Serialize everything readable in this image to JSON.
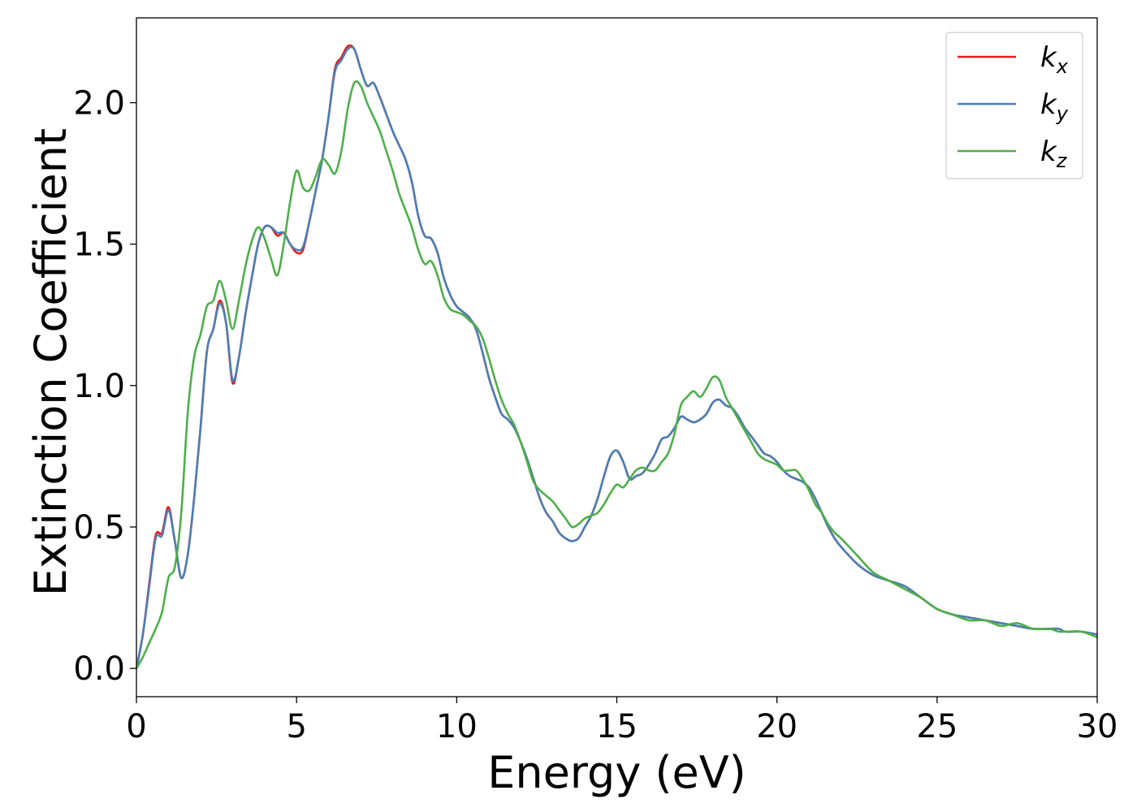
{
  "chart_data": {
    "type": "line",
    "xlabel": "Energy (eV)",
    "ylabel": "Extinction Coefficient",
    "xlim": [
      0,
      30
    ],
    "ylim": [
      -0.1,
      2.3
    ],
    "xticks": [
      0,
      5,
      10,
      15,
      20,
      25,
      30
    ],
    "xtick_labels": [
      "0",
      "5",
      "10",
      "15",
      "20",
      "25",
      "30"
    ],
    "yticks": [
      0.0,
      0.5,
      1.0,
      1.5,
      2.0
    ],
    "ytick_labels": [
      "0.0",
      "0.5",
      "1.0",
      "1.5",
      "2.0"
    ],
    "grid": false,
    "legend_position": "top-right",
    "series": [
      {
        "name": "k_x",
        "label_main": "k",
        "label_sub": "x",
        "color": "#e41a1c",
        "x": [
          0,
          0.2,
          0.4,
          0.6,
          0.8,
          1.0,
          1.2,
          1.4,
          1.6,
          1.8,
          2.0,
          2.2,
          2.4,
          2.6,
          2.8,
          3.0,
          3.2,
          3.4,
          3.6,
          3.8,
          4.0,
          4.2,
          4.4,
          4.6,
          4.8,
          5.0,
          5.2,
          5.4,
          5.6,
          5.8,
          6.0,
          6.2,
          6.4,
          6.6,
          6.8,
          7.0,
          7.2,
          7.4,
          7.6,
          7.8,
          8.0,
          8.2,
          8.4,
          8.6,
          8.8,
          9.0,
          9.2,
          9.4,
          9.6,
          9.8,
          10.0,
          10.2,
          10.4,
          10.6,
          10.8,
          11.0,
          11.2,
          11.4,
          11.6,
          11.8,
          12.0,
          12.2,
          12.4,
          12.6,
          12.8,
          13.0,
          13.2,
          13.4,
          13.6,
          13.8,
          14.0,
          14.2,
          14.4,
          14.6,
          14.8,
          15.0,
          15.2,
          15.4,
          15.6,
          15.8,
          16.0,
          16.2,
          16.4,
          16.6,
          16.8,
          17.0,
          17.2,
          17.4,
          17.6,
          17.8,
          18.0,
          18.2,
          18.4,
          18.6,
          18.8,
          19.0,
          19.2,
          19.4,
          19.6,
          19.8,
          20.0,
          20.2,
          20.4,
          20.6,
          20.8,
          21.0,
          21.2,
          21.4,
          21.6,
          21.8,
          22.0,
          22.5,
          23.0,
          23.5,
          24.0,
          24.5,
          25.0,
          25.5,
          26.0,
          26.5,
          27.0,
          27.5,
          28.0,
          28.5,
          28.8,
          29.0,
          29.5,
          30.0
        ],
        "y": [
          0.0,
          0.12,
          0.3,
          0.47,
          0.48,
          0.57,
          0.45,
          0.32,
          0.4,
          0.6,
          0.85,
          1.12,
          1.2,
          1.3,
          1.22,
          1.01,
          1.1,
          1.25,
          1.38,
          1.5,
          1.56,
          1.56,
          1.53,
          1.54,
          1.5,
          1.47,
          1.48,
          1.58,
          1.69,
          1.8,
          1.95,
          2.12,
          2.16,
          2.2,
          2.19,
          2.12,
          2.06,
          2.07,
          2.02,
          1.96,
          1.9,
          1.85,
          1.8,
          1.72,
          1.6,
          1.53,
          1.52,
          1.47,
          1.38,
          1.32,
          1.28,
          1.26,
          1.24,
          1.2,
          1.12,
          1.03,
          0.96,
          0.9,
          0.88,
          0.85,
          0.8,
          0.74,
          0.67,
          0.6,
          0.55,
          0.52,
          0.48,
          0.46,
          0.45,
          0.46,
          0.5,
          0.54,
          0.6,
          0.68,
          0.75,
          0.77,
          0.73,
          0.67,
          0.68,
          0.69,
          0.72,
          0.76,
          0.81,
          0.82,
          0.85,
          0.89,
          0.88,
          0.87,
          0.88,
          0.9,
          0.94,
          0.95,
          0.93,
          0.92,
          0.89,
          0.85,
          0.82,
          0.79,
          0.76,
          0.75,
          0.73,
          0.7,
          0.68,
          0.67,
          0.66,
          0.64,
          0.6,
          0.55,
          0.5,
          0.46,
          0.43,
          0.37,
          0.33,
          0.31,
          0.29,
          0.25,
          0.21,
          0.19,
          0.18,
          0.17,
          0.16,
          0.15,
          0.14,
          0.14,
          0.14,
          0.13,
          0.13,
          0.12
        ]
      },
      {
        "name": "k_y",
        "label_main": "k",
        "label_sub": "y",
        "color": "#4a7fb5",
        "x": [
          0,
          0.2,
          0.4,
          0.6,
          0.8,
          1.0,
          1.2,
          1.4,
          1.6,
          1.8,
          2.0,
          2.2,
          2.4,
          2.6,
          2.8,
          3.0,
          3.2,
          3.4,
          3.6,
          3.8,
          4.0,
          4.2,
          4.4,
          4.6,
          4.8,
          5.0,
          5.2,
          5.4,
          5.6,
          5.8,
          6.0,
          6.2,
          6.4,
          6.6,
          6.8,
          7.0,
          7.2,
          7.4,
          7.6,
          7.8,
          8.0,
          8.2,
          8.4,
          8.6,
          8.8,
          9.0,
          9.2,
          9.4,
          9.6,
          9.8,
          10.0,
          10.2,
          10.4,
          10.6,
          10.8,
          11.0,
          11.2,
          11.4,
          11.6,
          11.8,
          12.0,
          12.2,
          12.4,
          12.6,
          12.8,
          13.0,
          13.2,
          13.4,
          13.6,
          13.8,
          14.0,
          14.2,
          14.4,
          14.6,
          14.8,
          15.0,
          15.2,
          15.4,
          15.6,
          15.8,
          16.0,
          16.2,
          16.4,
          16.6,
          16.8,
          17.0,
          17.2,
          17.4,
          17.6,
          17.8,
          18.0,
          18.2,
          18.4,
          18.6,
          18.8,
          19.0,
          19.2,
          19.4,
          19.6,
          19.8,
          20.0,
          20.2,
          20.4,
          20.6,
          20.8,
          21.0,
          21.2,
          21.4,
          21.6,
          21.8,
          22.0,
          22.5,
          23.0,
          23.5,
          24.0,
          24.5,
          25.0,
          25.5,
          26.0,
          26.5,
          27.0,
          27.5,
          28.0,
          28.5,
          28.8,
          29.0,
          29.5,
          30.0
        ],
        "y": [
          0.0,
          0.12,
          0.29,
          0.46,
          0.47,
          0.56,
          0.45,
          0.32,
          0.4,
          0.6,
          0.85,
          1.12,
          1.2,
          1.29,
          1.22,
          1.02,
          1.1,
          1.25,
          1.38,
          1.5,
          1.56,
          1.56,
          1.54,
          1.54,
          1.5,
          1.48,
          1.49,
          1.58,
          1.69,
          1.8,
          1.95,
          2.11,
          2.15,
          2.19,
          2.19,
          2.12,
          2.06,
          2.07,
          2.02,
          1.96,
          1.9,
          1.85,
          1.8,
          1.72,
          1.6,
          1.53,
          1.52,
          1.47,
          1.38,
          1.32,
          1.28,
          1.26,
          1.24,
          1.2,
          1.12,
          1.03,
          0.96,
          0.9,
          0.88,
          0.85,
          0.8,
          0.74,
          0.67,
          0.6,
          0.55,
          0.52,
          0.48,
          0.46,
          0.45,
          0.46,
          0.5,
          0.54,
          0.6,
          0.68,
          0.75,
          0.77,
          0.73,
          0.67,
          0.68,
          0.69,
          0.72,
          0.76,
          0.81,
          0.82,
          0.85,
          0.89,
          0.88,
          0.87,
          0.88,
          0.9,
          0.94,
          0.95,
          0.93,
          0.92,
          0.89,
          0.85,
          0.82,
          0.79,
          0.76,
          0.75,
          0.73,
          0.7,
          0.68,
          0.67,
          0.66,
          0.64,
          0.6,
          0.55,
          0.5,
          0.46,
          0.43,
          0.37,
          0.33,
          0.31,
          0.29,
          0.25,
          0.21,
          0.19,
          0.18,
          0.17,
          0.16,
          0.15,
          0.14,
          0.14,
          0.14,
          0.13,
          0.13,
          0.12
        ]
      },
      {
        "name": "k_z",
        "label_main": "k",
        "label_sub": "z",
        "color": "#4daf4a",
        "x": [
          0,
          0.2,
          0.4,
          0.6,
          0.8,
          1.0,
          1.2,
          1.4,
          1.6,
          1.8,
          2.0,
          2.2,
          2.4,
          2.6,
          2.8,
          3.0,
          3.2,
          3.4,
          3.6,
          3.8,
          4.0,
          4.2,
          4.4,
          4.6,
          4.8,
          5.0,
          5.2,
          5.4,
          5.6,
          5.8,
          6.0,
          6.2,
          6.4,
          6.6,
          6.8,
          7.0,
          7.2,
          7.4,
          7.6,
          7.8,
          8.0,
          8.2,
          8.4,
          8.6,
          8.8,
          9.0,
          9.2,
          9.4,
          9.6,
          9.8,
          10.0,
          10.2,
          10.4,
          10.6,
          10.8,
          11.0,
          11.2,
          11.4,
          11.6,
          11.8,
          12.0,
          12.2,
          12.4,
          12.6,
          12.8,
          13.0,
          13.2,
          13.4,
          13.6,
          13.8,
          14.0,
          14.2,
          14.4,
          14.6,
          14.8,
          15.0,
          15.2,
          15.4,
          15.6,
          15.8,
          16.0,
          16.2,
          16.4,
          16.6,
          16.8,
          17.0,
          17.2,
          17.4,
          17.6,
          17.8,
          18.0,
          18.2,
          18.4,
          18.6,
          18.8,
          19.0,
          19.2,
          19.4,
          19.6,
          19.8,
          20.0,
          20.2,
          20.4,
          20.6,
          20.8,
          21.0,
          21.2,
          21.4,
          21.6,
          21.8,
          22.0,
          22.5,
          23.0,
          23.5,
          24.0,
          24.5,
          25.0,
          25.5,
          26.0,
          26.5,
          27.0,
          27.5,
          28.0,
          28.5,
          28.8,
          29.0,
          29.5,
          30.0
        ],
        "y": [
          0.0,
          0.04,
          0.09,
          0.14,
          0.2,
          0.32,
          0.36,
          0.55,
          0.9,
          1.1,
          1.18,
          1.28,
          1.3,
          1.37,
          1.3,
          1.2,
          1.3,
          1.42,
          1.51,
          1.56,
          1.52,
          1.45,
          1.39,
          1.5,
          1.65,
          1.76,
          1.7,
          1.69,
          1.74,
          1.8,
          1.78,
          1.75,
          1.83,
          1.98,
          2.07,
          2.06,
          2.0,
          1.95,
          1.9,
          1.83,
          1.76,
          1.68,
          1.62,
          1.56,
          1.48,
          1.43,
          1.44,
          1.39,
          1.31,
          1.27,
          1.26,
          1.25,
          1.23,
          1.21,
          1.17,
          1.1,
          1.02,
          0.95,
          0.9,
          0.86,
          0.8,
          0.73,
          0.66,
          0.63,
          0.61,
          0.59,
          0.56,
          0.53,
          0.5,
          0.51,
          0.53,
          0.54,
          0.55,
          0.58,
          0.62,
          0.65,
          0.64,
          0.67,
          0.7,
          0.71,
          0.7,
          0.7,
          0.73,
          0.76,
          0.83,
          0.93,
          0.96,
          0.98,
          0.96,
          0.99,
          1.03,
          1.02,
          0.96,
          0.92,
          0.88,
          0.84,
          0.8,
          0.76,
          0.74,
          0.73,
          0.72,
          0.7,
          0.7,
          0.7,
          0.67,
          0.63,
          0.58,
          0.55,
          0.51,
          0.48,
          0.46,
          0.4,
          0.34,
          0.31,
          0.28,
          0.25,
          0.21,
          0.19,
          0.17,
          0.17,
          0.15,
          0.16,
          0.14,
          0.14,
          0.13,
          0.13,
          0.13,
          0.11
        ]
      }
    ]
  }
}
